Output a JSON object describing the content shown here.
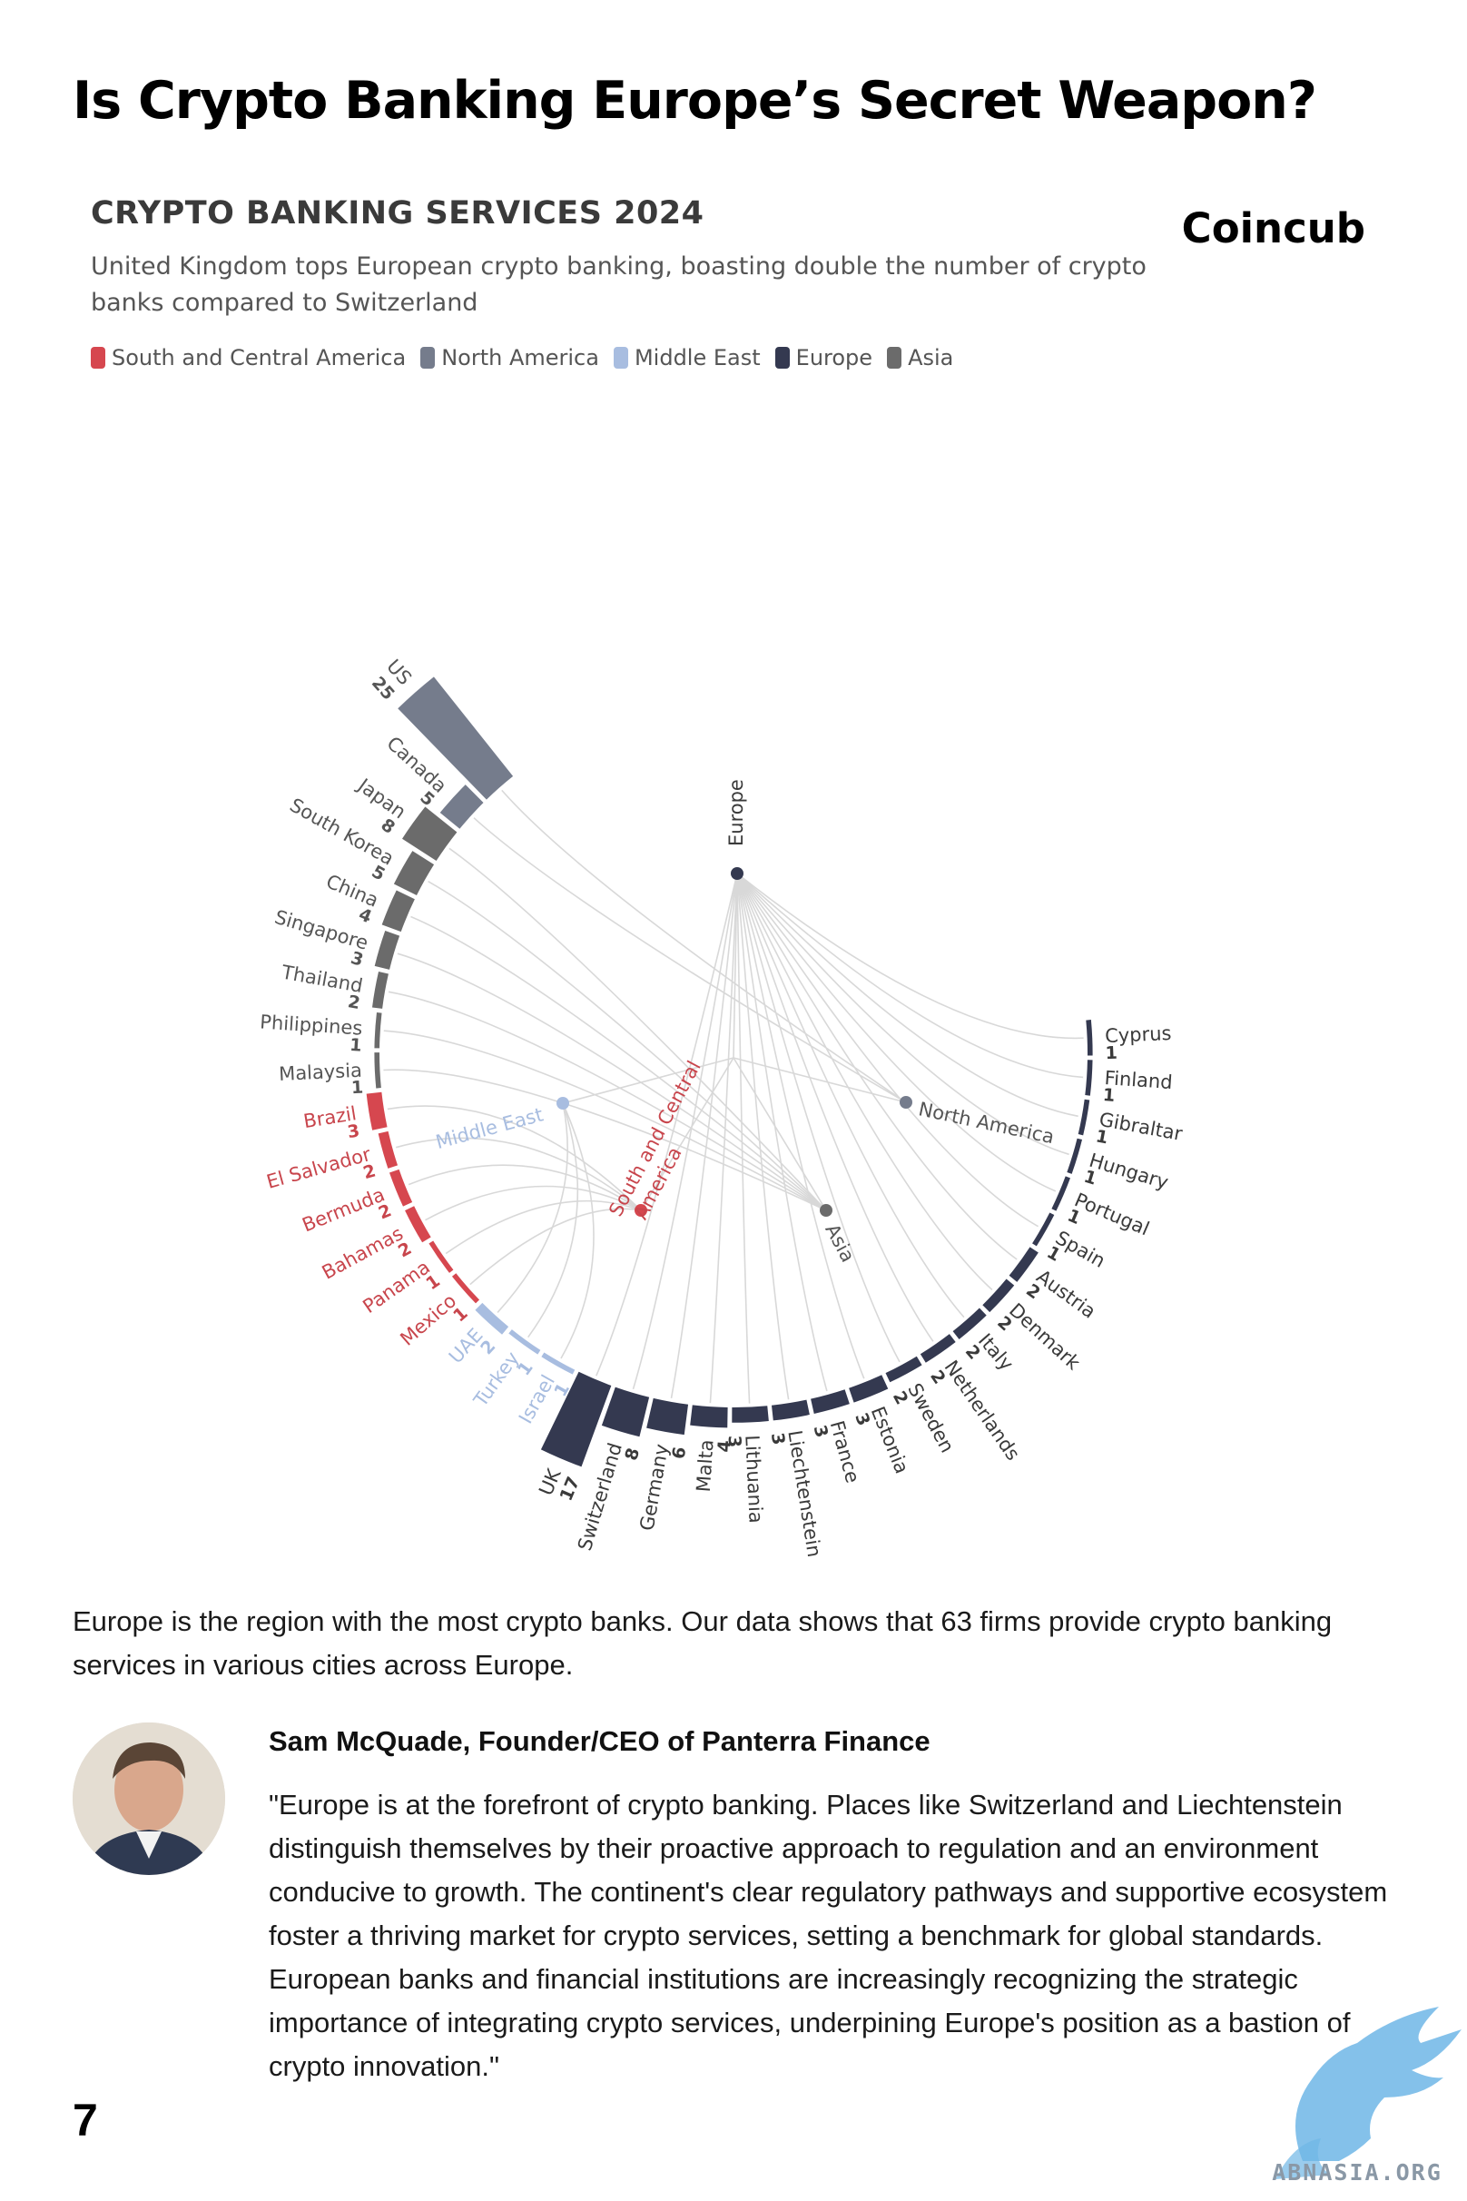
{
  "page": {
    "title": "Is Crypto Banking Europe’s Secret Weapon?",
    "brand": "Coincub",
    "page_number": "7",
    "watermark_text": "ABNASIA.ORG"
  },
  "article": {
    "body": "Europe is the region with the most crypto banks. Our data shows that 63 firms provide crypto banking services in various cities across Europe.",
    "quote_author": "Sam McQuade, Founder/CEO of Panterra Finance",
    "quote_text": "\"Europe is at the forefront of crypto banking. Places like Switzerland and Liechtenstein distinguish themselves by their proactive approach to regulation and an environment conducive to growth. The continent's clear regulatory pathways and supportive ecosystem foster a thriving market for crypto services, setting a benchmark for global standards. European banks and financial institutions are increasingly recognizing the strategic importance of integrating crypto services, underpining Europe's position as a bastion of crypto innovation.\""
  },
  "chart_data": {
    "type": "radial-bar",
    "title": "CRYPTO BANKING SERVICES 2024",
    "subtitle": "United Kingdom tops European crypto banking, boasting double the number of crypto banks compared to Switzerland",
    "legend": [
      {
        "name": "South and Central America",
        "color": "#d6474f"
      },
      {
        "name": "North America",
        "color": "#757c8c"
      },
      {
        "name": "Middle East",
        "color": "#a8bde0"
      },
      {
        "name": "Europe",
        "color": "#343950"
      },
      {
        "name": "Asia",
        "color": "#6b6b6b"
      }
    ],
    "series": [
      {
        "name": "Europe",
        "color": "#343950",
        "label_color": "#3a3a3a",
        "data": [
          {
            "label": "Cyprus",
            "value": 1
          },
          {
            "label": "Finland",
            "value": 1
          },
          {
            "label": "Gibraltar",
            "value": 1
          },
          {
            "label": "Hungary",
            "value": 1
          },
          {
            "label": "Portugal",
            "value": 1
          },
          {
            "label": "Spain",
            "value": 1
          },
          {
            "label": "Austria",
            "value": 2
          },
          {
            "label": "Denmark",
            "value": 2
          },
          {
            "label": "Italy",
            "value": 2
          },
          {
            "label": "Netherlands",
            "value": 2
          },
          {
            "label": "Sweden",
            "value": 2
          },
          {
            "label": "Estonia",
            "value": 3
          },
          {
            "label": "France",
            "value": 3
          },
          {
            "label": "Liechtenstein",
            "value": 3
          },
          {
            "label": "Lithuania",
            "value": 3
          },
          {
            "label": "Malta",
            "value": 4
          },
          {
            "label": "Germany",
            "value": 6
          },
          {
            "label": "Switzerland",
            "value": 8
          },
          {
            "label": "UK",
            "value": 17
          }
        ]
      },
      {
        "name": "Middle East",
        "color": "#a8bde0",
        "label_color": "#a8bde0",
        "data": [
          {
            "label": "Israel",
            "value": 1
          },
          {
            "label": "Turkey",
            "value": 1
          },
          {
            "label": "UAE",
            "value": 2
          }
        ]
      },
      {
        "name": "South and Central America",
        "color": "#d6474f",
        "label_color": "#c8454c",
        "data": [
          {
            "label": "Mexico",
            "value": 1
          },
          {
            "label": "Panama",
            "value": 1
          },
          {
            "label": "Bahamas",
            "value": 2
          },
          {
            "label": "Bermuda",
            "value": 2
          },
          {
            "label": "El Salvador",
            "value": 2
          },
          {
            "label": "Brazil",
            "value": 3
          }
        ]
      },
      {
        "name": "Asia",
        "color": "#6b6b6b",
        "label_color": "#555555",
        "data": [
          {
            "label": "Malaysia",
            "value": 1
          },
          {
            "label": "Philippines",
            "value": 1
          },
          {
            "label": "Thailand",
            "value": 2
          },
          {
            "label": "Singapore",
            "value": 3
          },
          {
            "label": "China",
            "value": 4
          },
          {
            "label": "South Korea",
            "value": 5
          },
          {
            "label": "Japan",
            "value": 8
          }
        ]
      },
      {
        "name": "North America",
        "color": "#757c8c",
        "label_color": "#555555",
        "data": [
          {
            "label": "Canada",
            "value": 5
          },
          {
            "label": "US",
            "value": 25
          }
        ]
      }
    ]
  }
}
